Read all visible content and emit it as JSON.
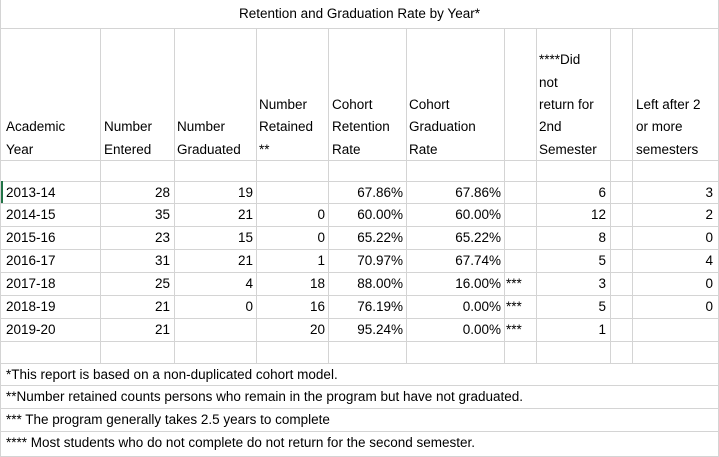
{
  "title": "Retention and Graduation Rate by Year*",
  "headers": {
    "academic_year": [
      "Academic",
      "Year"
    ],
    "number_entered": [
      "Number",
      "Entered"
    ],
    "number_graduated": [
      "Number",
      "Graduated"
    ],
    "number_retained": [
      "Number",
      "Retained",
      "**"
    ],
    "cohort_retention": [
      "Cohort",
      "Retention",
      "Rate"
    ],
    "cohort_graduation": [
      "Cohort",
      "Graduation",
      "Rate"
    ],
    "did_not_return": [
      "****Did",
      "not",
      "return for",
      "2nd",
      "Semester"
    ],
    "left_after": [
      "Left after 2",
      "or more",
      "semesters"
    ]
  },
  "rows": [
    {
      "year": "2013-14",
      "entered": "28",
      "graduated": "19",
      "retained": "",
      "retention": "67.86%",
      "graduation": "67.86%",
      "flag": "",
      "did_not_return": "6",
      "left": "3"
    },
    {
      "year": "2014-15",
      "entered": "35",
      "graduated": "21",
      "retained": "0",
      "retention": "60.00%",
      "graduation": "60.00%",
      "flag": "",
      "did_not_return": "12",
      "left": "2"
    },
    {
      "year": "2015-16",
      "entered": "23",
      "graduated": "15",
      "retained": "0",
      "retention": "65.22%",
      "graduation": "65.22%",
      "flag": "",
      "did_not_return": "8",
      "left": "0"
    },
    {
      "year": "2016-17",
      "entered": "31",
      "graduated": "21",
      "retained": "1",
      "retention": "70.97%",
      "graduation": "67.74%",
      "flag": "",
      "did_not_return": "5",
      "left": "4"
    },
    {
      "year": "2017-18",
      "entered": "25",
      "graduated": "4",
      "retained": "18",
      "retention": "88.00%",
      "graduation": "16.00%",
      "flag": "***",
      "did_not_return": "3",
      "left": "0"
    },
    {
      "year": "2018-19",
      "entered": "21",
      "graduated": "0",
      "retained": "16",
      "retention": "76.19%",
      "graduation": "0.00%",
      "flag": "***",
      "did_not_return": "5",
      "left": "0"
    },
    {
      "year": "2019-20",
      "entered": "21",
      "graduated": "",
      "retained": "20",
      "retention": "95.24%",
      "graduation": "0.00%",
      "flag": "***",
      "did_not_return": "1",
      "left": ""
    }
  ],
  "notes": [
    "*This report is based on a non-duplicated cohort model.",
    "**Number retained counts persons who remain in the program but have not graduated.",
    "*** The program generally takes 2.5 years to complete",
    "**** Most students who do not complete do not return for the second semester."
  ]
}
